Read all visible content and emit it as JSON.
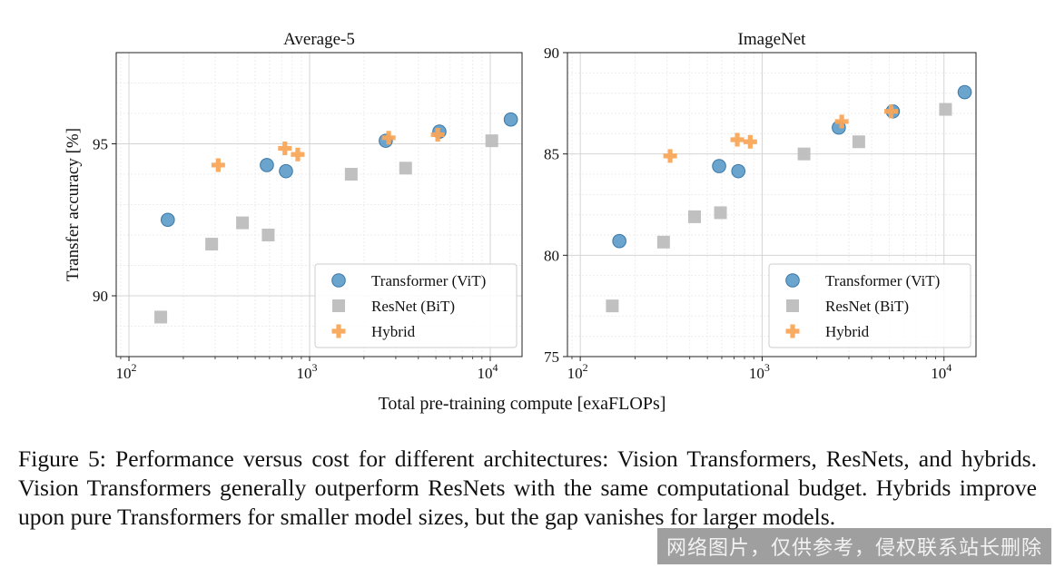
{
  "chart_data": [
    {
      "type": "scatter",
      "title": "Average-5",
      "ylabel": "Transfer accuracy [%]",
      "xscale": "log",
      "xlim": [
        85,
        15000
      ],
      "ylim": [
        88,
        98
      ],
      "xticks": [
        100,
        1000,
        10000
      ],
      "xtick_labels": [
        {
          "base": "10",
          "exp": "2"
        },
        {
          "base": "10",
          "exp": "3"
        },
        {
          "base": "10",
          "exp": "4"
        }
      ],
      "yticks": [
        90,
        95
      ],
      "ytick_labels": [
        "90",
        "95"
      ],
      "grid": true,
      "legend": "lower-right",
      "series": [
        {
          "name": "Transformer (ViT)",
          "marker": "circle",
          "color": "#5b9ac8",
          "points": [
            [
              164,
              92.5
            ],
            [
              580,
              94.3
            ],
            [
              740,
              94.1
            ],
            [
              2640,
              95.1
            ],
            [
              5230,
              95.4
            ],
            [
              13000,
              95.8
            ]
          ]
        },
        {
          "name": "ResNet (BiT)",
          "marker": "square",
          "color": "#bdbdbd",
          "points": [
            [
              150,
              89.3
            ],
            [
              287,
              91.7
            ],
            [
              425,
              92.4
            ],
            [
              590,
              92.0
            ],
            [
              1700,
              94.0
            ],
            [
              3400,
              94.2
            ],
            [
              10200,
              95.1
            ]
          ]
        },
        {
          "name": "Hybrid",
          "marker": "plus",
          "color": "#f9a75a",
          "points": [
            [
              312,
              94.3
            ],
            [
              730,
              94.85
            ],
            [
              860,
              94.65
            ],
            [
              2740,
              95.2
            ],
            [
              5120,
              95.3
            ]
          ]
        }
      ]
    },
    {
      "type": "scatter",
      "title": "ImageNet",
      "ylabel": "",
      "xscale": "log",
      "xlim": [
        85,
        15000
      ],
      "ylim": [
        75,
        90
      ],
      "xticks": [
        100,
        1000,
        10000
      ],
      "xtick_labels": [
        {
          "base": "10",
          "exp": "2"
        },
        {
          "base": "10",
          "exp": "3"
        },
        {
          "base": "10",
          "exp": "4"
        }
      ],
      "yticks": [
        75,
        80,
        85,
        90
      ],
      "ytick_labels": [
        "75",
        "80",
        "85",
        "90"
      ],
      "grid": true,
      "legend": "lower-right",
      "series": [
        {
          "name": "Transformer (ViT)",
          "marker": "circle",
          "color": "#5b9ac8",
          "points": [
            [
              164,
              80.7
            ],
            [
              580,
              84.4
            ],
            [
              740,
              84.15
            ],
            [
              2640,
              86.3
            ],
            [
              5230,
              87.1
            ],
            [
              13000,
              88.05
            ]
          ]
        },
        {
          "name": "ResNet (BiT)",
          "marker": "square",
          "color": "#bdbdbd",
          "points": [
            [
              150,
              77.5
            ],
            [
              287,
              80.65
            ],
            [
              425,
              81.9
            ],
            [
              590,
              82.1
            ],
            [
              1700,
              85.0
            ],
            [
              3400,
              85.6
            ],
            [
              10200,
              87.2
            ]
          ]
        },
        {
          "name": "Hybrid",
          "marker": "plus",
          "color": "#f9a75a",
          "points": [
            [
              312,
              84.9
            ],
            [
              730,
              85.7
            ],
            [
              860,
              85.6
            ],
            [
              2740,
              86.6
            ],
            [
              5120,
              87.1
            ]
          ]
        }
      ]
    }
  ],
  "xlabel": "Total pre-training compute [exaFLOPs]",
  "caption": {
    "label": "Figure 5:",
    "text": "Performance versus cost for different architectures: Vision Transformers, ResNets, and hybrids. Vision Transformers generally outperform ResNets with the same computational budget. Hybrids improve upon pure Transformers for smaller model sizes, but the gap vanishes for larger models."
  },
  "watermark": "网络图片，仅供参考，侵权联系站长删除"
}
